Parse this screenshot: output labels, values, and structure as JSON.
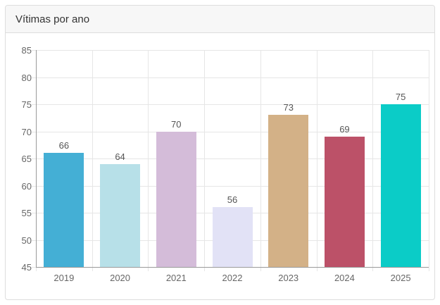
{
  "panel": {
    "title": "Vítimas por ano"
  },
  "chart_data": {
    "type": "bar",
    "title": "Vítimas por ano",
    "categories": [
      "2019",
      "2020",
      "2021",
      "2022",
      "2023",
      "2024",
      "2025"
    ],
    "values": [
      66,
      64,
      70,
      56,
      73,
      69,
      75
    ],
    "bar_colors": [
      "#44afd5",
      "#b7e0e8",
      "#d4bcd9",
      "#e2e2f6",
      "#d3b187",
      "#bc5168",
      "#0bccc7"
    ],
    "xlabel": "",
    "ylabel": "",
    "ylim": [
      45,
      85
    ],
    "y_tick_step": 5,
    "grid": true,
    "legend": "none",
    "axis_color": "#9a9a9a",
    "grid_color": "#e6e6e6",
    "tick_label_color": "#666666",
    "value_label_color": "#555555"
  }
}
